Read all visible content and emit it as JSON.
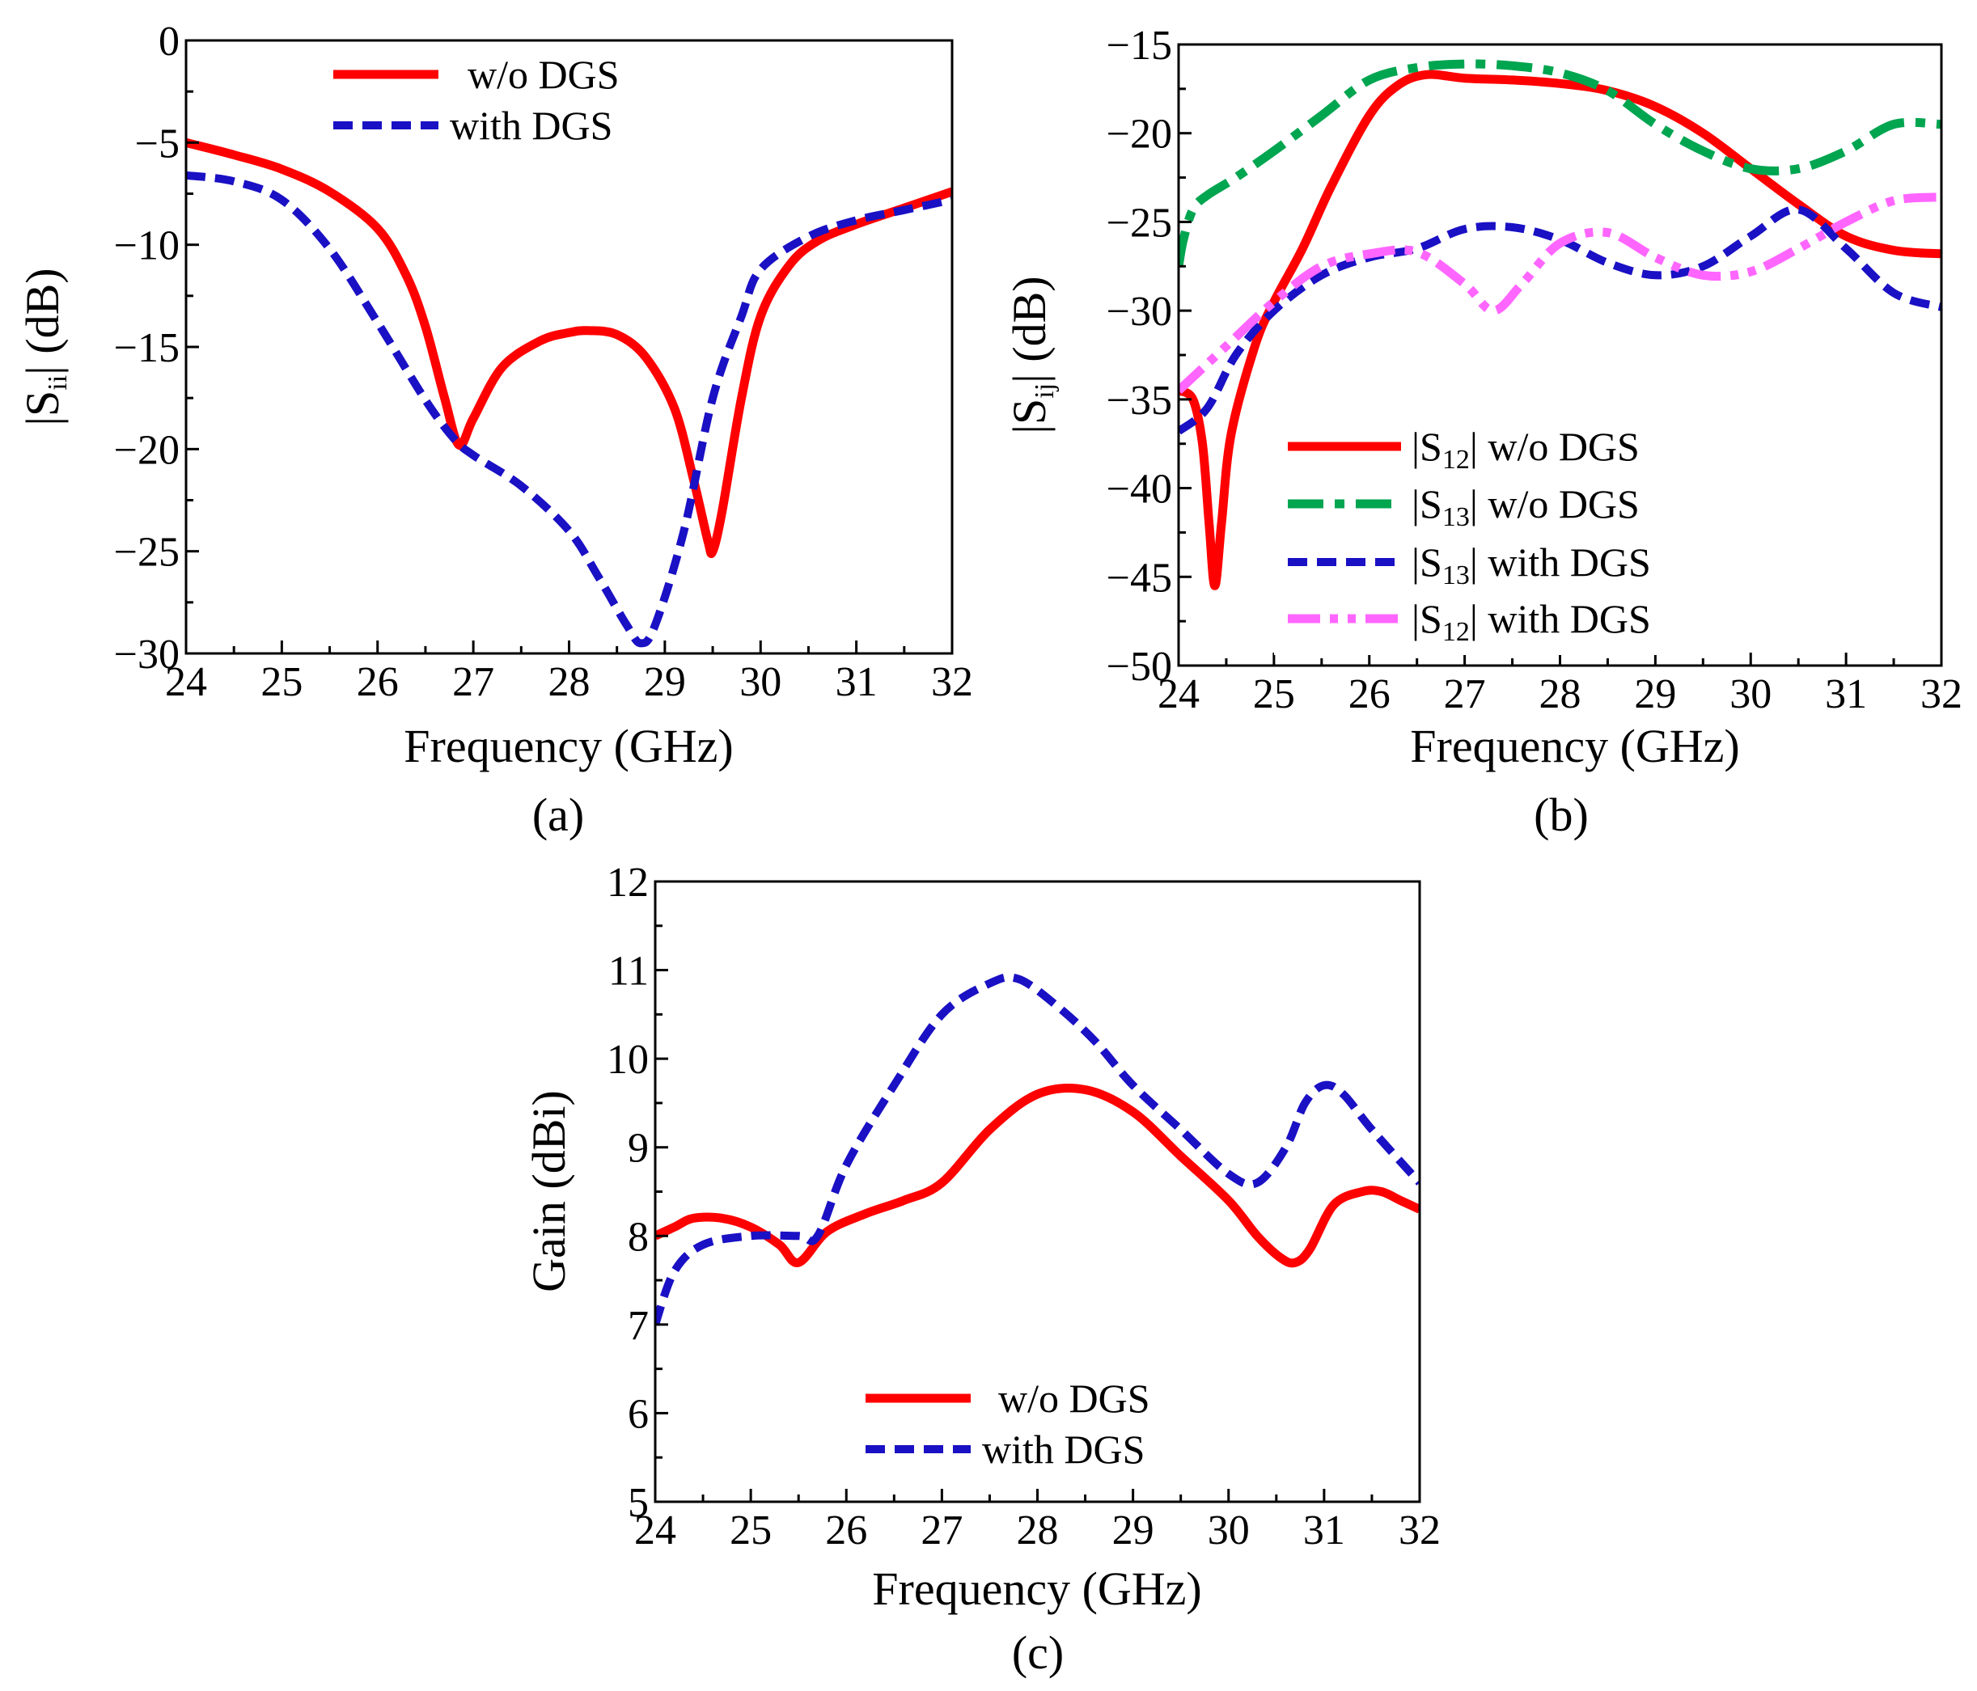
{
  "chart_data": [
    {
      "id": "a",
      "type": "line",
      "caption": "(a)",
      "xlabel": "Frequency (GHz)",
      "ylabel_pre": "|S",
      "ylabel_sub": "ii",
      "ylabel_post": "| (dB)",
      "xlim": [
        24,
        32
      ],
      "ylim": [
        -30,
        0
      ],
      "xticks": [
        24,
        25,
        26,
        27,
        28,
        29,
        30,
        31,
        32
      ],
      "yticks": [
        0,
        -5,
        -10,
        -15,
        -20,
        -25,
        -30
      ],
      "ytick_labels": [
        "0",
        "−5",
        "−10",
        "−15",
        "−20",
        "−25",
        "−30"
      ],
      "series": [
        {
          "name": "w/o DGS",
          "color": "#ff0000",
          "style": "solid",
          "x": [
            24,
            24.5,
            25,
            25.5,
            26,
            26.3,
            26.5,
            26.7,
            26.85,
            27,
            27.3,
            27.7,
            28,
            28.2,
            28.5,
            28.8,
            29.1,
            29.3,
            29.45,
            29.5,
            29.6,
            29.8,
            30,
            30.3,
            30.6,
            31,
            31.5,
            32
          ],
          "y": [
            -5,
            -5.6,
            -6.3,
            -7.4,
            -9.2,
            -11.5,
            -14,
            -17.5,
            -19.8,
            -18.5,
            -16,
            -14.7,
            -14.3,
            -14.2,
            -14.4,
            -15.5,
            -18,
            -21.5,
            -24.5,
            -25,
            -23,
            -17.5,
            -13.5,
            -11,
            -9.8,
            -9,
            -8.2,
            -7.4
          ]
        },
        {
          "name": "with DGS",
          "color": "#1a10c4",
          "style": "dashed",
          "x": [
            24,
            24.5,
            25,
            25.5,
            26,
            26.5,
            26.8,
            27,
            27.5,
            28,
            28.3,
            28.6,
            28.75,
            28.9,
            29.2,
            29.5,
            29.8,
            30,
            30.5,
            31,
            31.5,
            32
          ],
          "y": [
            -6.6,
            -6.9,
            -7.8,
            -10.2,
            -13.8,
            -17.6,
            -19.5,
            -20.3,
            -21.8,
            -24,
            -26.2,
            -28.6,
            -29.5,
            -28.6,
            -24,
            -17.5,
            -13.5,
            -11.2,
            -9.6,
            -8.8,
            -8.3,
            -7.8
          ]
        }
      ],
      "legend": [
        {
          "label": "w/o DGS"
        },
        {
          "label": "with DGS"
        }
      ]
    },
    {
      "id": "b",
      "type": "line",
      "caption": "(b)",
      "xlabel": "Frequency (GHz)",
      "ylabel_pre": "|S",
      "ylabel_sub": "ij",
      "ylabel_post": "| (dB)",
      "xlim": [
        24,
        32
      ],
      "ylim": [
        -50,
        -15
      ],
      "xticks": [
        24,
        25,
        26,
        27,
        28,
        29,
        30,
        31,
        32
      ],
      "yticks": [
        -15,
        -20,
        -25,
        -30,
        -35,
        -40,
        -45,
        -50
      ],
      "ytick_labels": [
        "−15",
        "−20",
        "−25",
        "−30",
        "−35",
        "−40",
        "−45",
        "−50"
      ],
      "series": [
        {
          "name": "|S12| w/o DGS",
          "color": "#ff0000",
          "style": "solid",
          "x": [
            24,
            24.15,
            24.25,
            24.32,
            24.38,
            24.45,
            24.55,
            24.8,
            25,
            25.3,
            25.6,
            26,
            26.3,
            26.6,
            27,
            27.5,
            28,
            28.5,
            29,
            29.5,
            30,
            30.5,
            31,
            31.5,
            32
          ],
          "y": [
            -34.5,
            -35,
            -37.5,
            -42,
            -45.5,
            -42,
            -37,
            -32,
            -29.5,
            -26.5,
            -23,
            -19,
            -17.3,
            -16.7,
            -16.9,
            -17,
            -17.2,
            -17.6,
            -18.5,
            -20,
            -22,
            -24,
            -25.8,
            -26.6,
            -26.8
          ]
        },
        {
          "name": "|S13| w/o DGS",
          "color": "#00a550",
          "style": "dashdot",
          "x": [
            24,
            24.05,
            24.15,
            24.3,
            24.6,
            25,
            25.5,
            26,
            26.5,
            27,
            27.5,
            28,
            28.5,
            29,
            29.5,
            30,
            30.5,
            31,
            31.5,
            32
          ],
          "y": [
            -27.5,
            -26,
            -24.3,
            -23.5,
            -22.5,
            -21,
            -19,
            -17,
            -16.3,
            -16.1,
            -16.2,
            -16.6,
            -17.6,
            -19.5,
            -21,
            -22,
            -22,
            -21,
            -19.5,
            -19.5
          ]
        },
        {
          "name": "|S13| with DGS",
          "color": "#1a10c4",
          "style": "dashed",
          "x": [
            24,
            24.3,
            24.6,
            25,
            25.5,
            26,
            26.5,
            27,
            27.5,
            28,
            28.5,
            29,
            29.5,
            30,
            30.5,
            31,
            31.5,
            32
          ],
          "y": [
            -36.8,
            -35.5,
            -32.5,
            -30,
            -28,
            -27,
            -26.5,
            -25.4,
            -25.3,
            -26,
            -27.3,
            -28,
            -27.5,
            -25.8,
            -24.3,
            -26.5,
            -29,
            -29.8
          ]
        },
        {
          "name": "|S12| with DGS",
          "color": "#ff66ff",
          "style": "dashdotdot",
          "x": [
            24,
            24.5,
            25,
            25.5,
            26,
            26.5,
            27,
            27.3,
            27.6,
            28,
            28.5,
            29,
            29.5,
            30,
            30.5,
            31,
            31.5,
            32
          ],
          "y": [
            -34.5,
            -32,
            -29.5,
            -27.5,
            -26.8,
            -26.7,
            -28.5,
            -30,
            -28.5,
            -26.2,
            -25.6,
            -27,
            -28,
            -27.8,
            -26.5,
            -25,
            -23.8,
            -23.6
          ]
        }
      ],
      "legend": [
        {
          "pre": "|S",
          "sub": "12",
          "post": "| w/o DGS"
        },
        {
          "pre": "|S",
          "sub": "13",
          "post": "| w/o DGS"
        },
        {
          "pre": "|S",
          "sub": "13",
          "post": "| with DGS"
        },
        {
          "pre": "|S",
          "sub": "12",
          "post": "| with DGS"
        }
      ]
    },
    {
      "id": "c",
      "type": "line",
      "caption": "(c)",
      "xlabel": "Frequency (GHz)",
      "ylabel_pre": "Gain (dBi)",
      "ylabel_sub": "",
      "ylabel_post": "",
      "xlim": [
        24,
        32
      ],
      "ylim": [
        5,
        12
      ],
      "xticks": [
        24,
        25,
        26,
        27,
        28,
        29,
        30,
        31,
        32
      ],
      "yticks": [
        5,
        6,
        7,
        8,
        9,
        10,
        11,
        12
      ],
      "ytick_labels": [
        "5",
        "6",
        "7",
        "8",
        "9",
        "10",
        "11",
        "12"
      ],
      "series": [
        {
          "name": "w/o DGS",
          "color": "#ff0000",
          "style": "solid",
          "x": [
            24,
            24.2,
            24.4,
            24.7,
            25,
            25.3,
            25.5,
            25.8,
            26.2,
            26.6,
            27,
            27.5,
            28,
            28.5,
            29,
            29.5,
            30,
            30.3,
            30.55,
            30.7,
            30.85,
            31.1,
            31.4,
            31.6,
            31.8,
            32
          ],
          "y": [
            8.0,
            8.1,
            8.2,
            8.2,
            8.1,
            7.9,
            7.7,
            8.05,
            8.25,
            8.4,
            8.6,
            9.2,
            9.6,
            9.65,
            9.4,
            8.9,
            8.4,
            8.0,
            7.75,
            7.7,
            7.85,
            8.35,
            8.5,
            8.5,
            8.4,
            8.3
          ]
        },
        {
          "name": "with DGS",
          "color": "#1a10c4",
          "style": "dashed",
          "x": [
            24,
            24.2,
            24.5,
            25,
            25.5,
            25.7,
            26,
            26.5,
            27,
            27.5,
            27.8,
            28.2,
            28.6,
            29,
            29.5,
            30,
            30.3,
            30.6,
            30.8,
            31,
            31.2,
            31.5,
            32
          ],
          "y": [
            7.0,
            7.6,
            7.9,
            8.0,
            8.0,
            8.0,
            8.8,
            9.7,
            10.5,
            10.85,
            10.9,
            10.6,
            10.2,
            9.7,
            9.2,
            8.7,
            8.6,
            9.0,
            9.5,
            9.7,
            9.6,
            9.2,
            8.6
          ]
        }
      ],
      "legend": [
        {
          "label": "w/o DGS"
        },
        {
          "label": "with DGS"
        }
      ]
    }
  ]
}
